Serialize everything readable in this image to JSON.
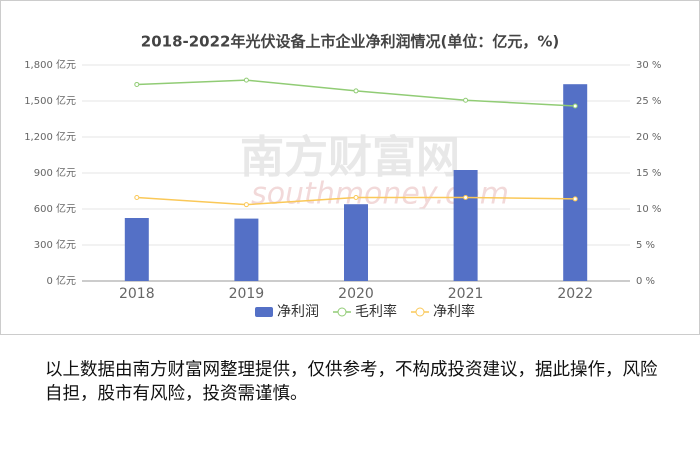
{
  "chart_data": {
    "type": "bar",
    "title": "2018-2022年光伏设备上市企业净利润情况(单位：亿元，%)",
    "categories": [
      "2018",
      "2019",
      "2020",
      "2021",
      "2022"
    ],
    "series": [
      {
        "name": "净利润",
        "type": "bar",
        "color": "#5470c6",
        "values": [
          525,
          520,
          640,
          925,
          1640
        ]
      },
      {
        "name": "毛利率",
        "type": "line",
        "axis": "y2",
        "color": "#91cc75",
        "values": [
          27.3,
          27.9,
          26.4,
          25.1,
          24.3
        ]
      },
      {
        "name": "净利率",
        "type": "line",
        "axis": "y2",
        "color": "#fac858",
        "values": [
          11.6,
          10.6,
          11.6,
          11.6,
          11.4
        ]
      }
    ],
    "ylim": [
      0,
      1800
    ],
    "yticks": [
      {
        "value": 0,
        "label": "0 亿元"
      },
      {
        "value": 300,
        "label": "300 亿元"
      },
      {
        "value": 600,
        "label": "600 亿元"
      },
      {
        "value": 900,
        "label": "900 亿元"
      },
      {
        "value": 1200,
        "label": "1,200 亿元"
      },
      {
        "value": 1500,
        "label": "1,500 亿元"
      },
      {
        "value": 1800,
        "label": "1,800 亿元"
      }
    ],
    "y2lim": [
      0,
      30
    ],
    "y2ticks": [
      {
        "value": 0,
        "label": "0 %"
      },
      {
        "value": 5,
        "label": "5 %"
      },
      {
        "value": 10,
        "label": "10 %"
      },
      {
        "value": 15,
        "label": "15 %"
      },
      {
        "value": 20,
        "label": "20 %"
      },
      {
        "value": 25,
        "label": "25 %"
      },
      {
        "value": 30,
        "label": "30 %"
      }
    ],
    "grid": true,
    "legend": "bottom"
  },
  "watermark": {
    "cn": "南方财富网",
    "en": "southmoney.com"
  },
  "caption": "以上数据由南方财富网整理提供，仅供参考，不构成投资建议，据此操作，风险自担，股市有风险，投资需谨慎。"
}
